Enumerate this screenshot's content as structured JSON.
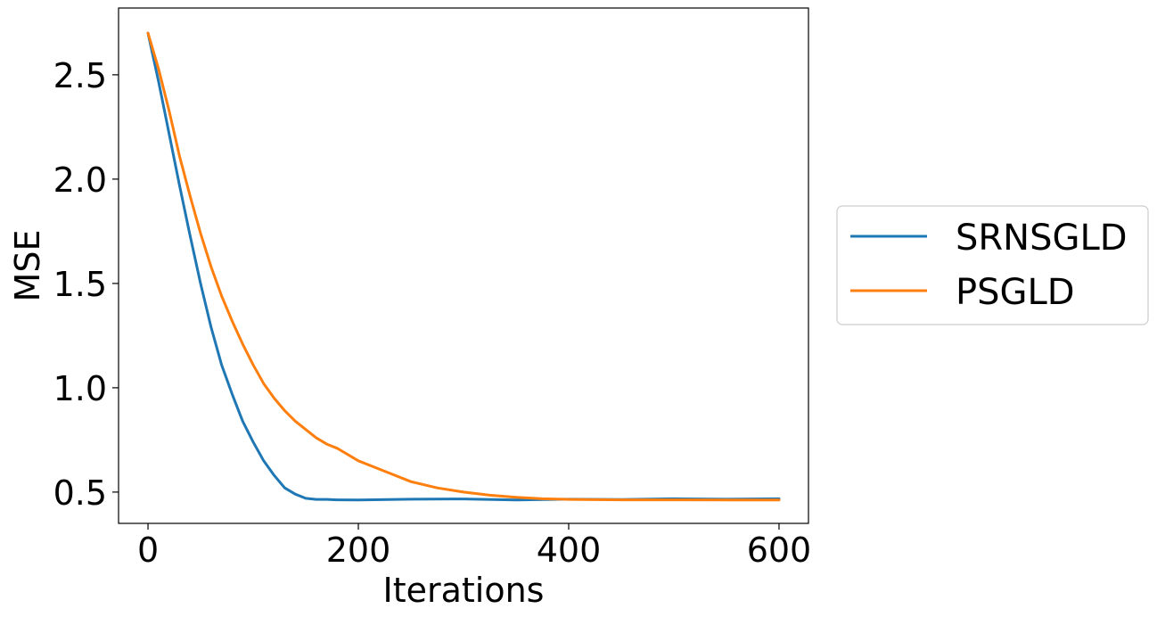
{
  "chart_data": {
    "type": "line",
    "title": "",
    "xlabel": "Iterations",
    "ylabel": "MSE",
    "xlim": [
      -28,
      628
    ],
    "ylim": [
      0.35,
      2.82
    ],
    "xticks": [
      0,
      200,
      400,
      600
    ],
    "xtick_labels": [
      "0",
      "200",
      "400",
      "600"
    ],
    "yticks": [
      0.5,
      1.0,
      1.5,
      2.0,
      2.5
    ],
    "ytick_labels": [
      "0.5",
      "1.0",
      "1.5",
      "2.0",
      "2.5"
    ],
    "grid": false,
    "legend_position": "outside-right",
    "series": [
      {
        "name": "SRNSGLD",
        "color": "#1f77b4",
        "x": [
          0,
          10,
          20,
          30,
          40,
          50,
          60,
          70,
          80,
          90,
          100,
          110,
          120,
          130,
          140,
          150,
          160,
          170,
          180,
          200,
          250,
          300,
          350,
          400,
          450,
          500,
          550,
          600
        ],
        "y": [
          2.7,
          2.47,
          2.22,
          1.97,
          1.73,
          1.5,
          1.29,
          1.11,
          0.97,
          0.84,
          0.74,
          0.65,
          0.58,
          0.52,
          0.49,
          0.47,
          0.465,
          0.465,
          0.463,
          0.462,
          0.466,
          0.467,
          0.462,
          0.466,
          0.464,
          0.468,
          0.466,
          0.468
        ]
      },
      {
        "name": "PSGLD",
        "color": "#ff7f0e",
        "x": [
          0,
          10,
          20,
          30,
          40,
          50,
          60,
          70,
          80,
          90,
          100,
          110,
          120,
          130,
          140,
          150,
          160,
          170,
          180,
          200,
          225,
          250,
          275,
          300,
          325,
          350,
          375,
          400,
          450,
          500,
          550,
          600
        ],
        "y": [
          2.7,
          2.53,
          2.33,
          2.11,
          1.92,
          1.74,
          1.58,
          1.44,
          1.32,
          1.21,
          1.11,
          1.02,
          0.95,
          0.89,
          0.84,
          0.8,
          0.76,
          0.73,
          0.71,
          0.65,
          0.6,
          0.55,
          0.52,
          0.5,
          0.485,
          0.475,
          0.468,
          0.465,
          0.463,
          0.463,
          0.462,
          0.462
        ]
      }
    ]
  }
}
